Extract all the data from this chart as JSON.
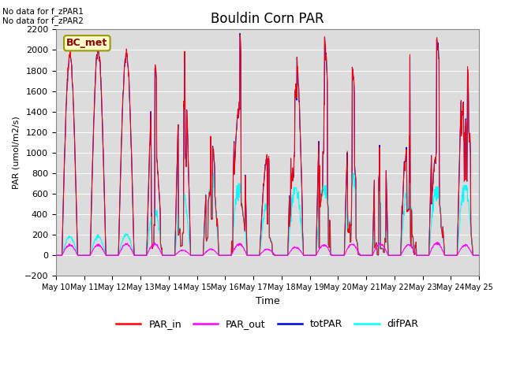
{
  "title": "Bouldin Corn PAR",
  "ylabel": "PAR (umol/m2/s)",
  "xlabel": "Time",
  "ylim": [
    -200,
    2200
  ],
  "bg_color": "#dcdcdc",
  "no_data_text1": "No data for f_zPAR1",
  "no_data_text2": "No data for f_zPAR2",
  "legend_label_box": "BC_met",
  "xtick_labels": [
    "May 10",
    "May 11",
    "May 12",
    "May 13",
    "May 14",
    "May 15",
    "May 16",
    "May 17",
    "May 18",
    "May 19",
    "May 20",
    "May 21",
    "May 22",
    "May 23",
    "May 24",
    "May 25"
  ],
  "colors": {
    "PAR_in": "#ff0000",
    "PAR_out": "#ff00ff",
    "totPAR": "#0000dd",
    "difPAR": "#00ffff"
  },
  "n_days": 15,
  "pts_per_day": 96,
  "peak_scales_totPAR": [
    1950,
    2000,
    1950,
    1850,
    2100,
    1150,
    2150,
    950,
    1950,
    2150,
    1800,
    2050,
    1950,
    2100,
    2100
  ],
  "peak_scales_difPAR": [
    180,
    185,
    200,
    450,
    600,
    800,
    700,
    500,
    660,
    680,
    800,
    620,
    700,
    670,
    680
  ],
  "peak_scales_PAR_out": [
    100,
    100,
    110,
    110,
    50,
    60,
    110,
    60,
    80,
    100,
    110,
    110,
    100,
    120,
    100
  ],
  "cloudy_days": [
    3,
    4,
    5,
    6,
    7,
    8,
    9,
    10,
    11,
    12,
    13,
    14
  ],
  "seed": 12345
}
